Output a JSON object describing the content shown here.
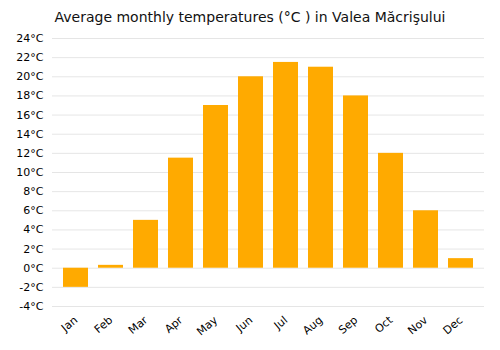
{
  "chart_data": {
    "type": "bar",
    "title": "Average monthly temperatures (°C ) in Valea Măcrişului",
    "categories": [
      "Jan",
      "Feb",
      "Mar",
      "Apr",
      "May",
      "Jun",
      "Jul",
      "Aug",
      "Sep",
      "Oct",
      "Nov",
      "Dec"
    ],
    "values": [
      -2.0,
      0.3,
      5.0,
      11.5,
      17.0,
      20.0,
      21.5,
      21.0,
      18.0,
      12.0,
      6.0,
      1.0
    ],
    "color": "#FFAA00",
    "ylim": [
      -4,
      24
    ],
    "yticks": [
      {
        "value": -4,
        "label": "-4°C"
      },
      {
        "value": -2,
        "label": "-2°C"
      },
      {
        "value": 0,
        "label": "0°C"
      },
      {
        "value": 2,
        "label": "2°C"
      },
      {
        "value": 4,
        "label": "4°C"
      },
      {
        "value": 6,
        "label": "6°C"
      },
      {
        "value": 8,
        "label": "8°C"
      },
      {
        "value": 10,
        "label": "10°C"
      },
      {
        "value": 12,
        "label": "12°C"
      },
      {
        "value": 14,
        "label": "14°C"
      },
      {
        "value": 16,
        "label": "16°C"
      },
      {
        "value": 18,
        "label": "18°C"
      },
      {
        "value": 20,
        "label": "20°C"
      },
      {
        "value": 22,
        "label": "22°C"
      },
      {
        "value": 24,
        "label": "24°C"
      }
    ],
    "grid": true
  }
}
